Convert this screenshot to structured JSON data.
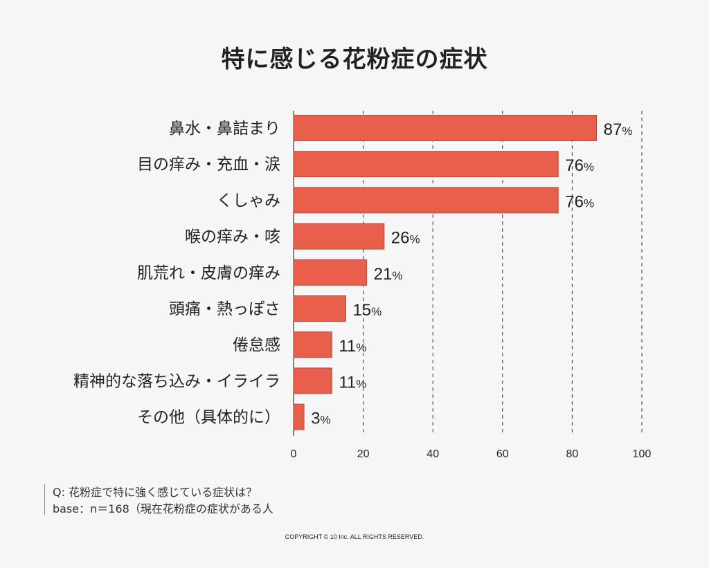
{
  "chart_data": {
    "type": "bar",
    "orientation": "horizontal",
    "title": "特に感じる花粉症の症状",
    "categories": [
      "鼻水・鼻詰まり",
      "目の痒み・充血・涙",
      "くしゃみ",
      "喉の痒み・咳",
      "肌荒れ・皮膚の痒み",
      "頭痛・熱っぽさ",
      "倦怠感",
      "精神的な落ち込み・イライラ",
      "その他（具体的に）"
    ],
    "values": [
      87,
      76,
      76,
      26,
      21,
      15,
      11,
      11,
      3
    ],
    "value_suffix": "%",
    "xlim": [
      0,
      100
    ],
    "xticks": [
      0,
      20,
      40,
      60,
      80,
      100
    ],
    "grid": "vertical dashed",
    "bar_color": "#e8604c",
    "bar_border_color": "#b84a3a"
  },
  "notes": {
    "question": "Q: 花粉症で特に強く感じている症状は？",
    "base": "base：n＝168（現在花粉症の症状がある人"
  },
  "copyright": "COPYRIGHT © 10 Inc. ALL RIGHTS RESERVED."
}
